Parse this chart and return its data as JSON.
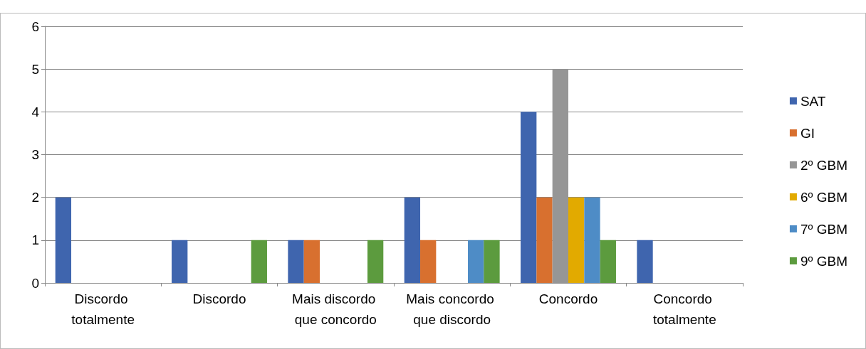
{
  "chart_data": {
    "type": "bar",
    "categories": [
      "Discordo totalmente",
      "Discordo",
      "Mais discordo que concordo",
      "Mais concordo que discordo",
      "Concordo",
      "Concordo totalmente"
    ],
    "series": [
      {
        "name": "SAT",
        "color": "#3f65ae",
        "values": [
          2,
          1,
          1,
          2,
          4,
          1
        ]
      },
      {
        "name": "GI",
        "color": "#d8702f",
        "values": [
          0,
          0,
          1,
          1,
          2,
          0
        ]
      },
      {
        "name": "2º GBM",
        "color": "#969696",
        "values": [
          0,
          0,
          0,
          0,
          5,
          0
        ]
      },
      {
        "name": "6º GBM",
        "color": "#e2aa00",
        "values": [
          0,
          0,
          0,
          0,
          2,
          0
        ]
      },
      {
        "name": "7º GBM",
        "color": "#4e8cc6",
        "values": [
          0,
          0,
          0,
          1,
          2,
          0
        ]
      },
      {
        "name": "9º GBM",
        "color": "#5c9b3e",
        "values": [
          0,
          1,
          1,
          1,
          1,
          0
        ]
      }
    ],
    "ylim": [
      0,
      6
    ],
    "yticks": [
      0,
      1,
      2,
      3,
      4,
      5,
      6
    ],
    "grid": "y",
    "legend": "right"
  }
}
